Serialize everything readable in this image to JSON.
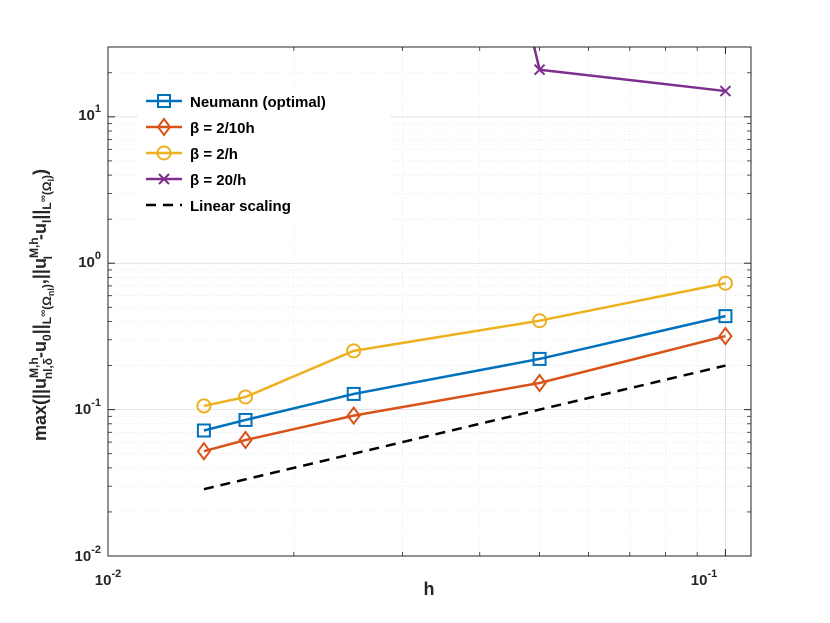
{
  "chart_data": {
    "type": "line",
    "xscale": "log",
    "yscale": "log",
    "xlim": [
      0.01,
      0.11
    ],
    "ylim": [
      0.01,
      30
    ],
    "grid": true,
    "legend_position": "top-left",
    "xlabel": "h",
    "ylabel": "max(||u^{M,h}_{nl,δ}-u_0||_{L^∞(Ω_{nl})},||u^{M,h}_I-u_l||_{L^∞(Ω_l)})",
    "ylabel_parts": {
      "p1": "max(||u",
      "sup1": "M,h",
      "sub1": "nl,δ",
      "p2": "-u",
      "sub2": "0",
      "p3": "||",
      "sub3a": "L",
      "sup3": "∞",
      "sub3b": "(Ω",
      "sub3c": "nl",
      "sub3d": ")",
      "p4": ",||u",
      "sup4": "M,h",
      "sub4": "I",
      "p5": "-u",
      "sub5": "l",
      "p6": "||",
      "sub6a": "L",
      "sup6": "∞",
      "sub6b": "(Ω",
      "sub6c": "l",
      "sub6d": ")",
      "p7": ")"
    },
    "x_ticks": [
      {
        "value": 0.01,
        "base": "10",
        "exp": "-2"
      },
      {
        "value": 0.1,
        "base": "10",
        "exp": "-1"
      }
    ],
    "y_ticks": [
      {
        "value": 0.01,
        "base": "10",
        "exp": "-2"
      },
      {
        "value": 0.1,
        "base": "10",
        "exp": "-1"
      },
      {
        "value": 1,
        "base": "10",
        "exp": "0"
      },
      {
        "value": 10,
        "base": "10",
        "exp": "1"
      }
    ],
    "series": [
      {
        "name": "Neumann (optimal)",
        "color": "#0072BD",
        "marker": "square",
        "linestyle": "solid",
        "x": [
          0.0143,
          0.0167,
          0.025,
          0.05,
          0.1
        ],
        "y": [
          0.072,
          0.085,
          0.128,
          0.222,
          0.435
        ]
      },
      {
        "name": "β = 2/10h",
        "color": "#D95319",
        "marker": "diamond",
        "linestyle": "solid",
        "x": [
          0.0143,
          0.0167,
          0.025,
          0.05,
          0.1
        ],
        "y": [
          0.052,
          0.062,
          0.091,
          0.152,
          0.318
        ]
      },
      {
        "name": "β = 2/h",
        "color": "#EDB120",
        "marker": "circle",
        "linestyle": "solid",
        "x": [
          0.0143,
          0.0167,
          0.025,
          0.05,
          0.1
        ],
        "y": [
          0.106,
          0.122,
          0.252,
          0.405,
          0.73
        ]
      },
      {
        "name": "β = 20/h",
        "color": "#7E2F8E",
        "marker": "x",
        "linestyle": "solid",
        "x": [
          0.049,
          0.05,
          0.1
        ],
        "y": [
          30,
          21,
          15
        ]
      },
      {
        "name": "Linear scaling",
        "color": "#000000",
        "marker": "none",
        "linestyle": "dashed",
        "x": [
          0.0143,
          0.1
        ],
        "y": [
          0.0286,
          0.2
        ]
      }
    ]
  }
}
